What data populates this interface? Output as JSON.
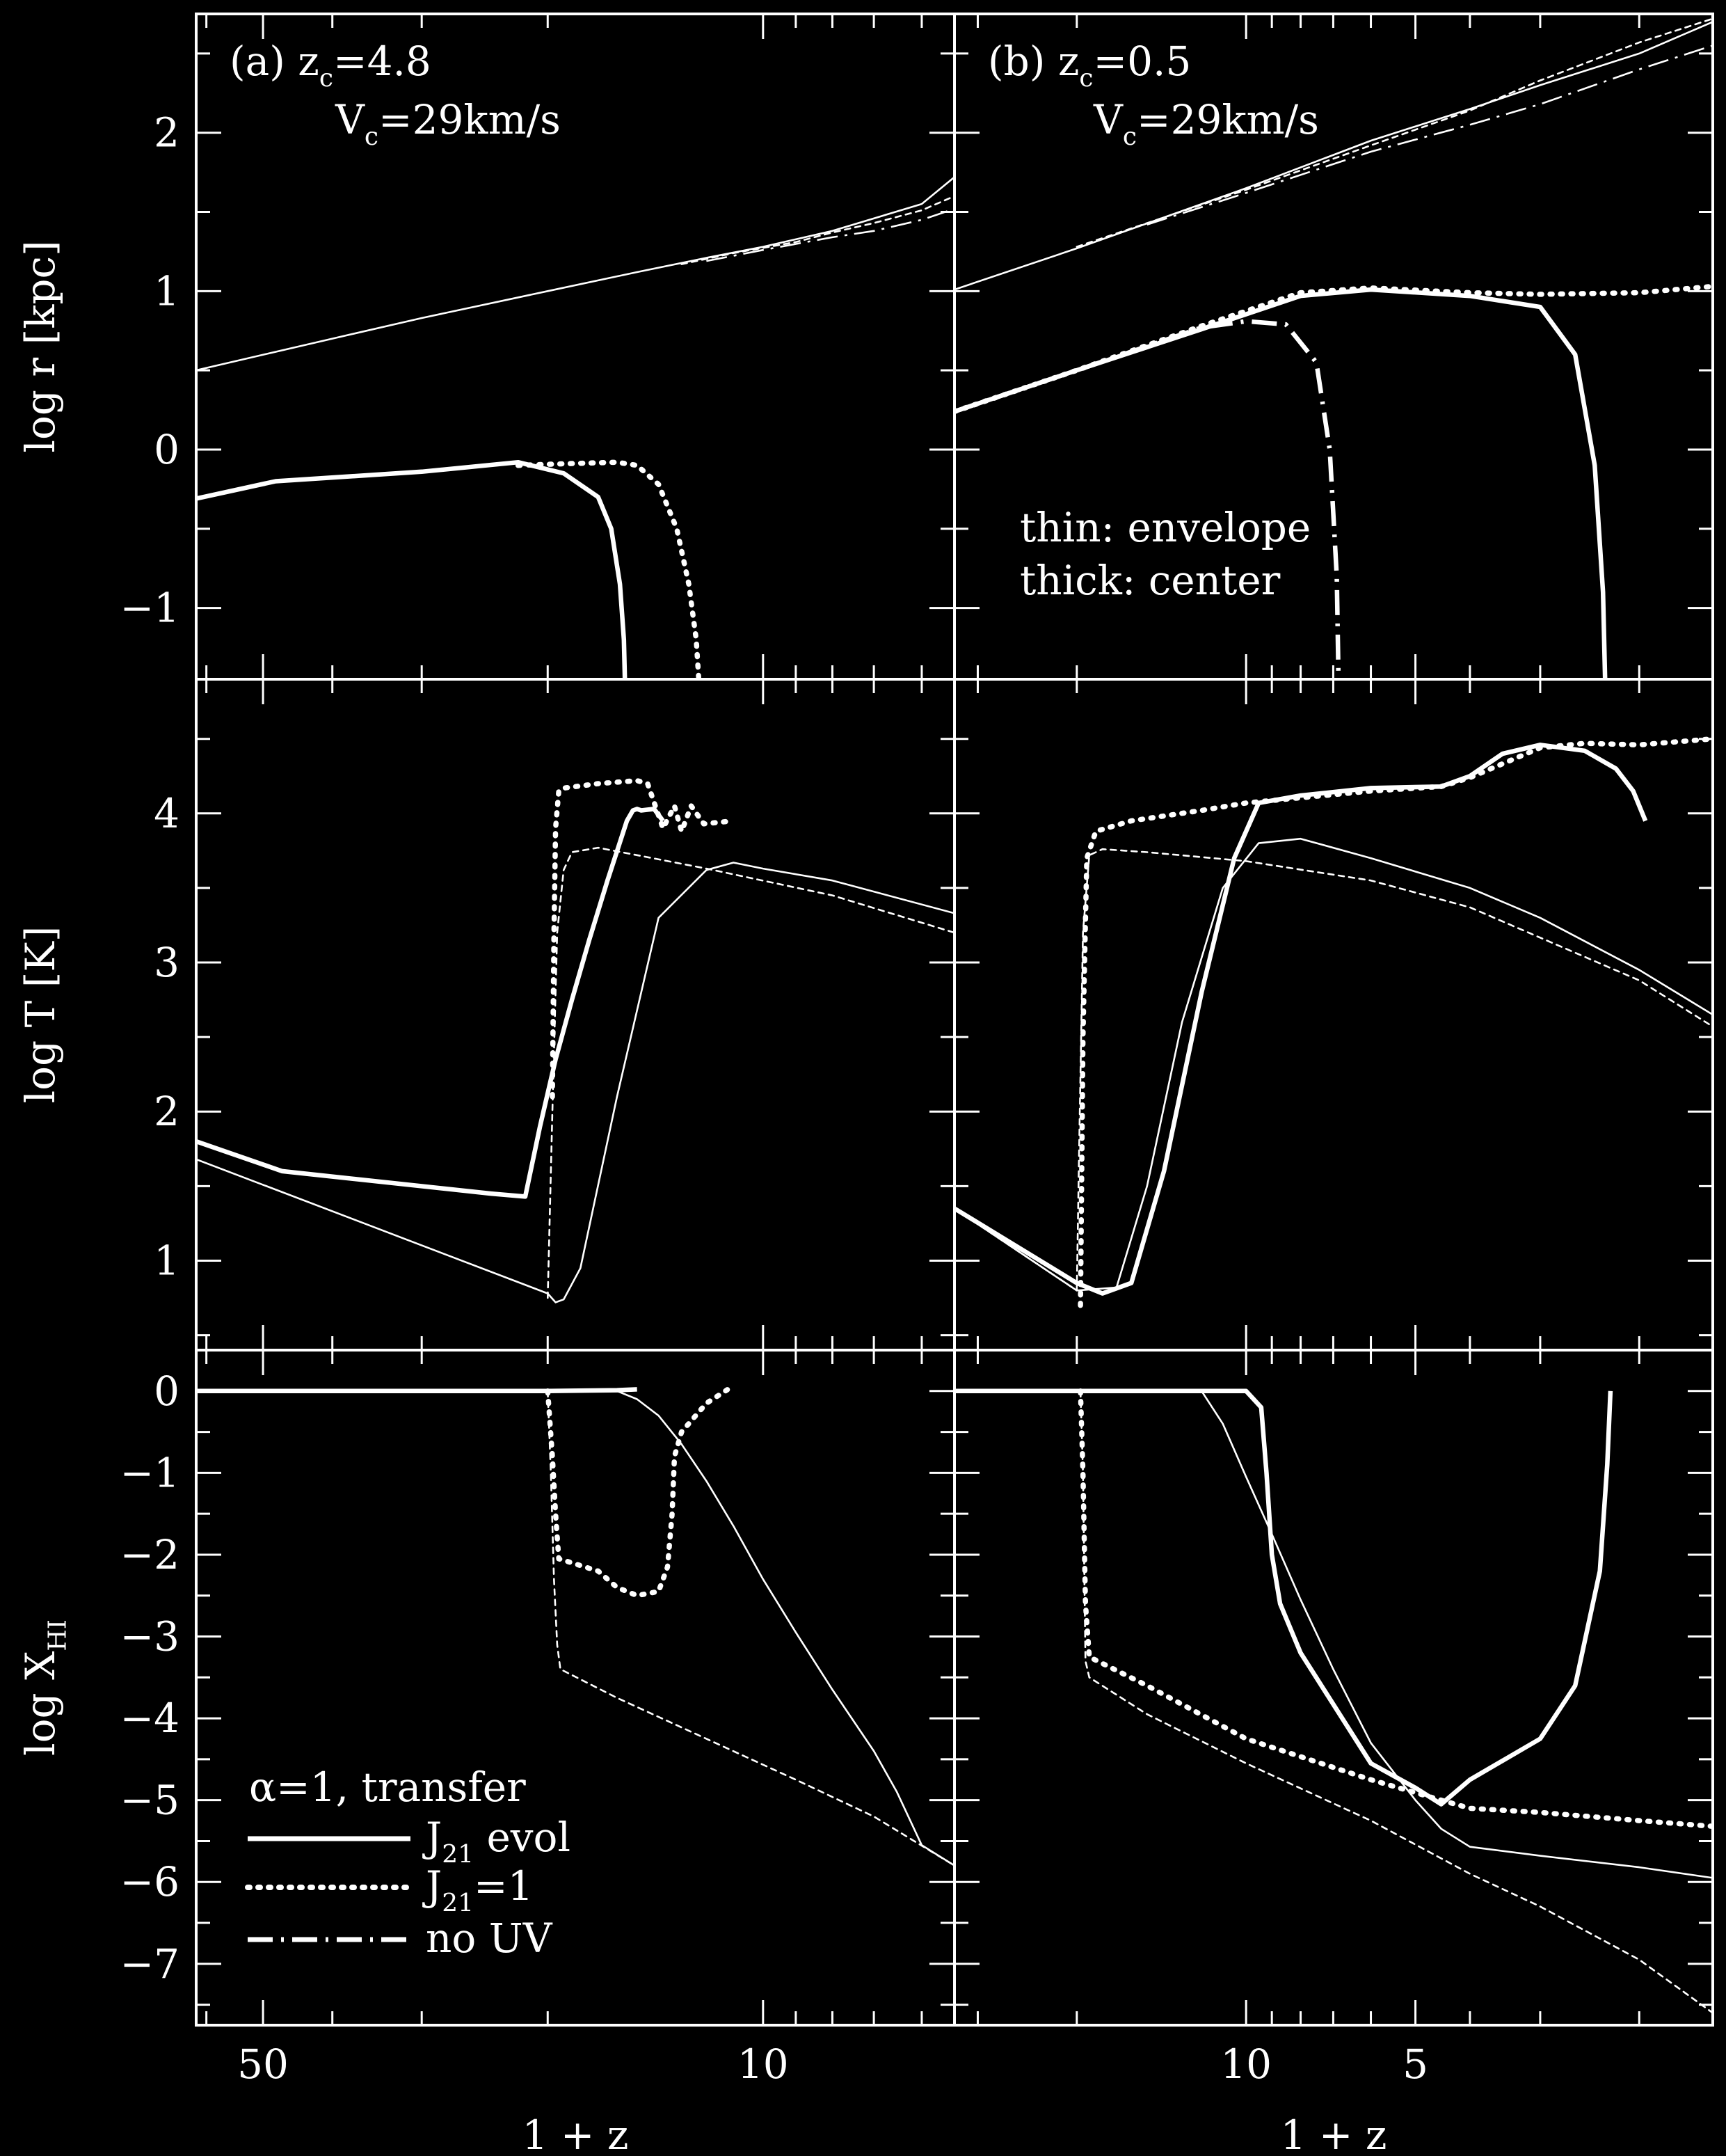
{
  "figure": {
    "background": "#000000",
    "foreground": "#ffffff",
    "xlabel": "1 + z",
    "ylabels": [
      "log r [kpc]",
      "log T [K]"
    ]
  },
  "chart_data": {
    "type": "line",
    "columns": [
      {
        "id": "a",
        "x_scale": "log",
        "xlim": [
          62,
          5.4
        ],
        "x_ticklabels": [
          {
            "value": 50,
            "label": "50"
          },
          {
            "value": 10,
            "label": "10"
          }
        ],
        "panel_label": "(a) z",
        "zc_sub": "c",
        "zc_value": "=4.8",
        "vc_label": "V",
        "vc_sub": "c",
        "vc_value": "=29km/s"
      },
      {
        "id": "b",
        "x_scale": "log",
        "xlim": [
          33,
          1.48
        ],
        "x_ticklabels": [
          {
            "value": 10,
            "label": "10"
          },
          {
            "value": 5,
            "label": "5"
          }
        ],
        "panel_label": "(b) z",
        "zc_sub": "c",
        "zc_value": "=0.5",
        "vc_label": "V",
        "vc_sub": "c",
        "vc_value": "=29km/s"
      }
    ],
    "rows": [
      {
        "id": "r",
        "ylabel": "log r [kpc]",
        "ylim": [
          -1.45,
          2.75
        ],
        "y_ticklabels": [
          {
            "value": 2,
            "label": "2"
          },
          {
            "value": 1,
            "label": "1"
          },
          {
            "value": 0,
            "label": "0"
          },
          {
            "value": -1,
            "label": "−1"
          }
        ]
      },
      {
        "id": "T",
        "ylabel": "log T [K]",
        "ylim": [
          0.4,
          4.9
        ],
        "y_ticklabels": [
          {
            "value": 4,
            "label": "4"
          },
          {
            "value": 3,
            "label": "3"
          },
          {
            "value": 2,
            "label": "2"
          },
          {
            "value": 1,
            "label": "1"
          }
        ]
      },
      {
        "id": "X",
        "ylabel_main": "log X",
        "ylabel_sub": "HI",
        "ylim": [
          -7.75,
          0.5
        ],
        "y_ticklabels": [
          {
            "value": 0,
            "label": "0"
          },
          {
            "value": -1,
            "label": "−1"
          },
          {
            "value": -2,
            "label": "−2"
          },
          {
            "value": -3,
            "label": "−3"
          },
          {
            "value": -4,
            "label": "−4"
          },
          {
            "value": -5,
            "label": "−5"
          },
          {
            "value": -6,
            "label": "−6"
          },
          {
            "value": -7,
            "label": "−7"
          }
        ]
      }
    ],
    "annotations": {
      "thin": "thin: envelope",
      "thick": "thick: center"
    },
    "legend": {
      "title": "α=1, transfer",
      "placement": "bottom-left of panel (a) lower row",
      "entries": [
        {
          "style": "solid",
          "pre": "J",
          "sub": "21",
          "post": " evol"
        },
        {
          "style": "dotted",
          "pre": "J",
          "sub": "21",
          "post": "=1"
        },
        {
          "style": "dashdot",
          "pre": "no UV",
          "sub": "",
          "post": ""
        }
      ]
    },
    "series": [
      {
        "name": "J21 evol, envelope",
        "col": "a",
        "row": "r",
        "style": "solid",
        "weight": "thin",
        "x": [
          62,
          40,
          30,
          20,
          15,
          12,
          10,
          8,
          6,
          5.4
        ],
        "y": [
          0.5,
          0.7,
          0.83,
          1.0,
          1.12,
          1.21,
          1.28,
          1.38,
          1.55,
          1.72
        ]
      },
      {
        "name": "J21=1, envelope",
        "col": "a",
        "row": "r",
        "style": "dotted",
        "weight": "thin",
        "x": [
          13,
          11,
          9,
          8,
          7,
          6,
          5.4
        ],
        "y": [
          1.17,
          1.24,
          1.31,
          1.37,
          1.43,
          1.51,
          1.6
        ]
      },
      {
        "name": "no UV, envelope",
        "col": "a",
        "row": "r",
        "style": "dashdot",
        "weight": "thin",
        "x": [
          12,
          10,
          8,
          7,
          6,
          5.4
        ],
        "y": [
          1.19,
          1.26,
          1.34,
          1.38,
          1.45,
          1.52
        ]
      },
      {
        "name": "J21 evol, center",
        "col": "a",
        "row": "r",
        "style": "solid",
        "weight": "thick",
        "x": [
          62,
          48,
          30,
          22,
          19,
          17,
          16.3,
          15.85,
          15.65,
          15.6
        ],
        "y": [
          -0.31,
          -0.2,
          -0.14,
          -0.08,
          -0.15,
          -0.3,
          -0.5,
          -0.85,
          -1.2,
          -1.45
        ]
      },
      {
        "name": "J21=1, center",
        "col": "a",
        "row": "r",
        "style": "dotted",
        "weight": "thick",
        "x": [
          22,
          19,
          16,
          15,
          14,
          13.2,
          12.7,
          12.4,
          12.3
        ],
        "y": [
          -0.1,
          -0.09,
          -0.08,
          -0.1,
          -0.22,
          -0.5,
          -0.85,
          -1.2,
          -1.45
        ]
      },
      {
        "name": "J21 evol, envelope",
        "col": "b",
        "row": "r",
        "style": "solid",
        "weight": "thin",
        "x": [
          33,
          20,
          10,
          6,
          4,
          3,
          2,
          1.48
        ],
        "y": [
          1.01,
          1.27,
          1.65,
          1.95,
          2.15,
          2.3,
          2.5,
          2.7
        ]
      },
      {
        "name": "J21=1, envelope",
        "col": "b",
        "row": "r",
        "style": "dotted",
        "weight": "thin",
        "x": [
          20,
          10,
          6,
          4,
          3,
          2,
          1.48
        ],
        "y": [
          1.28,
          1.64,
          1.92,
          2.14,
          2.33,
          2.57,
          2.72
        ]
      },
      {
        "name": "no UV, envelope",
        "col": "b",
        "row": "r",
        "style": "dashdot",
        "weight": "thin",
        "x": [
          15,
          10,
          6,
          4,
          3,
          2,
          1.48
        ],
        "y": [
          1.42,
          1.62,
          1.88,
          2.05,
          2.18,
          2.4,
          2.55
        ]
      },
      {
        "name": "J21 evol, center",
        "col": "b",
        "row": "r",
        "style": "solid",
        "weight": "thick",
        "x": [
          33,
          20,
          12,
          8,
          6,
          4,
          3,
          2.6,
          2.4,
          2.32,
          2.3
        ],
        "y": [
          0.24,
          0.5,
          0.76,
          0.97,
          1.01,
          0.97,
          0.9,
          0.6,
          -0.1,
          -0.9,
          -1.45
        ]
      },
      {
        "name": "J21=1, center",
        "col": "b",
        "row": "r",
        "style": "dotted",
        "weight": "thick",
        "x": [
          33,
          20,
          12,
          8,
          6,
          4,
          3,
          2,
          1.48
        ],
        "y": [
          0.24,
          0.5,
          0.78,
          0.99,
          1.02,
          0.99,
          0.98,
          0.99,
          1.03
        ]
      },
      {
        "name": "no UV, center",
        "col": "b",
        "row": "r",
        "style": "dashdot",
        "weight": "thick",
        "x": [
          33,
          20,
          12,
          10,
          8.5,
          7.5,
          7.1,
          6.9,
          6.85
        ],
        "y": [
          0.24,
          0.5,
          0.77,
          0.81,
          0.79,
          0.55,
          0.0,
          -0.8,
          -1.45
        ]
      },
      {
        "name": "J21 evol, envelope",
        "col": "a",
        "row": "T",
        "style": "solid",
        "weight": "thin",
        "x": [
          62,
          20,
          19.5,
          19,
          18,
          16,
          14,
          12,
          11,
          10,
          8,
          5.4
        ],
        "y": [
          1.68,
          0.78,
          0.72,
          0.74,
          0.95,
          2.1,
          3.3,
          3.62,
          3.67,
          3.63,
          3.55,
          3.33
        ]
      },
      {
        "name": "J21=1, envelope",
        "col": "a",
        "row": "T",
        "style": "dotted",
        "weight": "thin",
        "x": [
          20,
          19.7,
          19.4,
          19,
          18.5,
          17,
          15,
          12,
          8,
          5.4
        ],
        "y": [
          0.75,
          2.0,
          3.2,
          3.62,
          3.74,
          3.77,
          3.72,
          3.63,
          3.45,
          3.2
        ]
      },
      {
        "name": "J21 evol, center",
        "col": "a",
        "row": "T",
        "style": "solid",
        "weight": "thick",
        "x": [
          62,
          47,
          24,
          21.5,
          20.5,
          19.5,
          18.5,
          17.5,
          16.5,
          15.5,
          15.2,
          15.0,
          14.8,
          14.2,
          13.8
        ],
        "y": [
          1.8,
          1.6,
          1.45,
          1.43,
          1.9,
          2.35,
          2.75,
          3.15,
          3.55,
          3.95,
          4.02,
          4.03,
          4.02,
          4.03,
          3.95
        ]
      },
      {
        "name": "J21=1, center",
        "col": "a",
        "row": "T",
        "style": "dotted",
        "weight": "thick",
        "x": [
          19.7,
          19.6,
          19.5,
          19.3,
          19,
          17,
          15,
          14.5,
          13.8,
          13.3,
          13,
          12.6,
          12.1,
          11
        ],
        "y": [
          2.1,
          3.2,
          3.9,
          4.15,
          4.17,
          4.2,
          4.22,
          4.2,
          3.9,
          4.05,
          3.88,
          4.05,
          3.93,
          3.95
        ]
      },
      {
        "name": "J21 evol, envelope",
        "col": "b",
        "row": "T",
        "style": "solid",
        "weight": "thin",
        "x": [
          33,
          20,
          17,
          15,
          13,
          11,
          9.5,
          8,
          6,
          4,
          3,
          2,
          1.48
        ],
        "y": [
          1.35,
          0.8,
          0.82,
          1.5,
          2.6,
          3.5,
          3.8,
          3.83,
          3.7,
          3.5,
          3.3,
          2.95,
          2.65
        ]
      },
      {
        "name": "J21=1, envelope",
        "col": "b",
        "row": "T",
        "style": "dotted",
        "weight": "thin",
        "x": [
          33,
          20,
          19.8,
          19.5,
          19,
          18,
          15,
          10,
          6,
          4,
          2,
          1.48
        ],
        "y": [
          1.35,
          0.8,
          1.8,
          3.2,
          3.72,
          3.76,
          3.74,
          3.68,
          3.55,
          3.37,
          2.88,
          2.57
        ]
      },
      {
        "name": "J21 evol, center",
        "col": "b",
        "row": "T",
        "style": "solid",
        "weight": "thick",
        "x": [
          33,
          20,
          18,
          16,
          14,
          12,
          10.5,
          9.5,
          8,
          6,
          4.5,
          4,
          3.5,
          3,
          2.5,
          2.2,
          2.05,
          1.95
        ],
        "y": [
          1.35,
          0.85,
          0.78,
          0.85,
          1.6,
          2.8,
          3.7,
          4.07,
          4.12,
          4.17,
          4.18,
          4.25,
          4.4,
          4.46,
          4.42,
          4.3,
          4.15,
          3.95
        ]
      },
      {
        "name": "J21=1, center",
        "col": "b",
        "row": "T",
        "style": "dotted",
        "weight": "thick",
        "x": [
          19.7,
          19.5,
          19.2,
          18.5,
          16,
          12,
          10,
          6,
          4.5,
          4,
          3,
          2.5,
          2,
          1.48
        ],
        "y": [
          0.7,
          2.5,
          3.7,
          3.88,
          3.95,
          4.02,
          4.07,
          4.15,
          4.18,
          4.24,
          4.44,
          4.47,
          4.46,
          4.5
        ]
      },
      {
        "name": "J21 evol, envelope",
        "col": "a",
        "row": "X",
        "style": "solid",
        "weight": "thin",
        "x": [
          62,
          20,
          16,
          15,
          14,
          13,
          12,
          11,
          10,
          9,
          8,
          7,
          6.5,
          6,
          5.4
        ],
        "y": [
          0,
          0,
          0,
          -0.1,
          -0.3,
          -0.65,
          -1.1,
          -1.65,
          -2.3,
          -2.95,
          -3.65,
          -4.4,
          -4.9,
          -5.55,
          -5.8
        ]
      },
      {
        "name": "J21=1, envelope",
        "col": "a",
        "row": "X",
        "style": "dotted",
        "weight": "thin",
        "x": [
          20,
          19.8,
          19.6,
          19.4,
          19.2,
          16,
          12,
          9,
          7,
          5.4
        ],
        "y": [
          0,
          -1.0,
          -2.3,
          -3.1,
          -3.4,
          -3.75,
          -4.25,
          -4.75,
          -5.2,
          -5.8
        ]
      },
      {
        "name": "J21 evol, center",
        "col": "a",
        "row": "X",
        "style": "solid",
        "weight": "thick",
        "x": [
          62,
          20,
          16,
          15
        ],
        "y": [
          0,
          0,
          0.01,
          0.02
        ]
      },
      {
        "name": "J21=1, center",
        "col": "a",
        "row": "X",
        "style": "dotted",
        "weight": "thick",
        "x": [
          20,
          19.7,
          19.5,
          19.3,
          17,
          16,
          15,
          14,
          13.6,
          13.4,
          13.3,
          13,
          12,
          11.2
        ],
        "y": [
          0,
          -0.8,
          -1.5,
          -2.05,
          -2.2,
          -2.4,
          -2.5,
          -2.45,
          -2.15,
          -1.5,
          -0.8,
          -0.5,
          -0.15,
          0.02
        ]
      },
      {
        "name": "J21 evol, envelope",
        "col": "b",
        "row": "X",
        "style": "solid",
        "weight": "thin",
        "x": [
          33,
          12,
          11,
          10,
          9,
          8,
          7,
          6,
          5,
          4.5,
          4,
          3,
          2,
          1.48
        ],
        "y": [
          0,
          0,
          -0.4,
          -1.05,
          -1.75,
          -2.55,
          -3.4,
          -4.3,
          -5.0,
          -5.35,
          -5.57,
          -5.68,
          -5.82,
          -5.95
        ]
      },
      {
        "name": "J21=1, envelope",
        "col": "b",
        "row": "X",
        "style": "dotted",
        "weight": "thin",
        "x": [
          19.7,
          19.5,
          19.3,
          19,
          15,
          10,
          6,
          4,
          3,
          2,
          1.48
        ],
        "y": [
          0,
          -1.0,
          -3.3,
          -3.5,
          -3.95,
          -4.55,
          -5.25,
          -5.9,
          -6.3,
          -6.95,
          -7.6
        ]
      },
      {
        "name": "J21 evol, center",
        "col": "b",
        "row": "X",
        "style": "solid",
        "weight": "thick",
        "x": [
          33,
          10,
          9.4,
          9.2,
          9,
          8.7,
          8,
          6,
          5,
          4.5,
          4,
          3,
          2.6,
          2.35,
          2.28,
          2.25
        ],
        "y": [
          0,
          0,
          -0.2,
          -1.0,
          -2.0,
          -2.6,
          -3.2,
          -4.55,
          -4.85,
          -5.05,
          -4.75,
          -4.25,
          -3.6,
          -2.2,
          -0.9,
          0
        ]
      },
      {
        "name": "J21=1, center",
        "col": "b",
        "row": "X",
        "style": "dotted",
        "weight": "thick",
        "x": [
          19.7,
          19.5,
          19.3,
          19,
          15,
          10,
          6,
          4.5,
          4,
          3,
          2,
          1.48
        ],
        "y": [
          0,
          -1.0,
          -2.6,
          -3.25,
          -3.6,
          -4.25,
          -4.75,
          -5.0,
          -5.1,
          -5.15,
          -5.25,
          -5.32
        ]
      }
    ]
  }
}
